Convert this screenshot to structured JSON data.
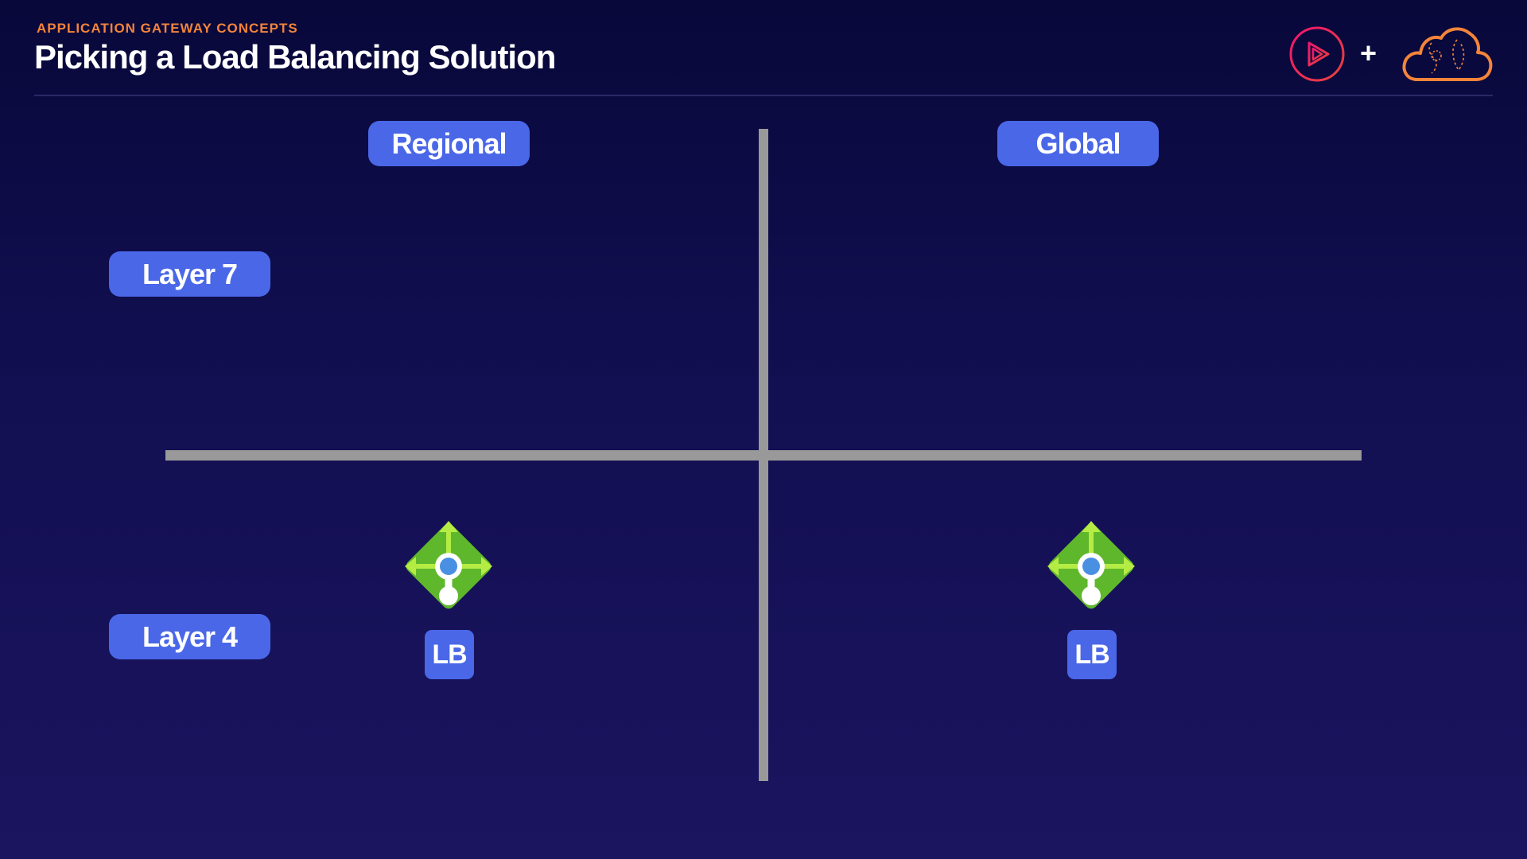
{
  "header": {
    "eyebrow": "APPLICATION GATEWAY CONCEPTS",
    "title": "Picking a Load Balancing Solution",
    "plus": "+"
  },
  "columns": {
    "regional": "Regional",
    "global": "Global"
  },
  "rows": {
    "layer7": "Layer 7",
    "layer4": "Layer 4"
  },
  "items": {
    "regional_layer4": {
      "icon": "load-balancer-icon",
      "label": "LB"
    },
    "global_layer4": {
      "icon": "load-balancer-icon",
      "label": "LB"
    }
  },
  "colors": {
    "accent_orange": "#f4843a",
    "pill_blue": "#4a67e8",
    "axis_gray": "#999999",
    "lb_green": "#5fb72c",
    "lb_blue_dot": "#4a90e2"
  }
}
